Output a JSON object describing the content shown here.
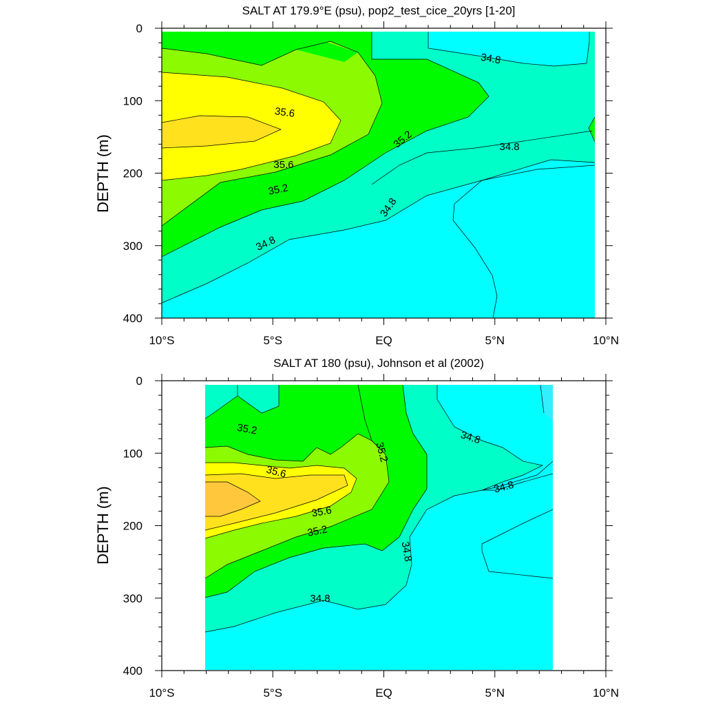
{
  "colors": {
    "lt_34_8": "#00ffff",
    "34_8_35_0": "#00ffc8",
    "35_0_35_2": "#00fa00",
    "35_2_35_4": "#8cfa00",
    "35_4_35_6": "#ffff00",
    "35_6_35_8": "#ffe11e",
    "gt_35_8": "#ffc83c"
  },
  "chart_data": [
    {
      "type": "contour",
      "title": "SALT AT 179.9°E (psu), pop2_test_cice_20yrs [1-20]",
      "xlabel": "",
      "ylabel": "DEPTH (m)",
      "xlim": [
        -10,
        10
      ],
      "ylim": [
        400,
        0
      ],
      "x_ticks": [
        "10°S",
        "5°S",
        "EQ",
        "5°N",
        "10°N"
      ],
      "y_ticks": [
        "0",
        "100",
        "200",
        "300",
        "400"
      ],
      "contour_levels": [
        34.8,
        35.0,
        35.2,
        35.4,
        35.6,
        35.8
      ],
      "contour_labels": [
        "34.8",
        "34.8",
        "34.8",
        "34.8",
        "35.2",
        "35.2",
        "35.6",
        "35.6"
      ]
    },
    {
      "type": "contour",
      "title": "SALT AT 180 (psu), Johnson et al (2002)",
      "xlabel": "",
      "ylabel": "DEPTH (m)",
      "xlim": [
        -10,
        10
      ],
      "ylim": [
        400,
        0
      ],
      "data_extent_lat": [
        -8,
        8
      ],
      "x_ticks": [
        "10°S",
        "5°S",
        "EQ",
        "5°N",
        "10°N"
      ],
      "y_ticks": [
        "0",
        "100",
        "200",
        "300",
        "400"
      ],
      "contour_levels": [
        34.8,
        35.0,
        35.2,
        35.4,
        35.6,
        35.8
      ],
      "contour_labels": [
        "35.2",
        "35.2",
        "34.8",
        "35.6",
        "35.6",
        "34.8",
        "35.2",
        "34.8",
        "34.8"
      ]
    }
  ]
}
